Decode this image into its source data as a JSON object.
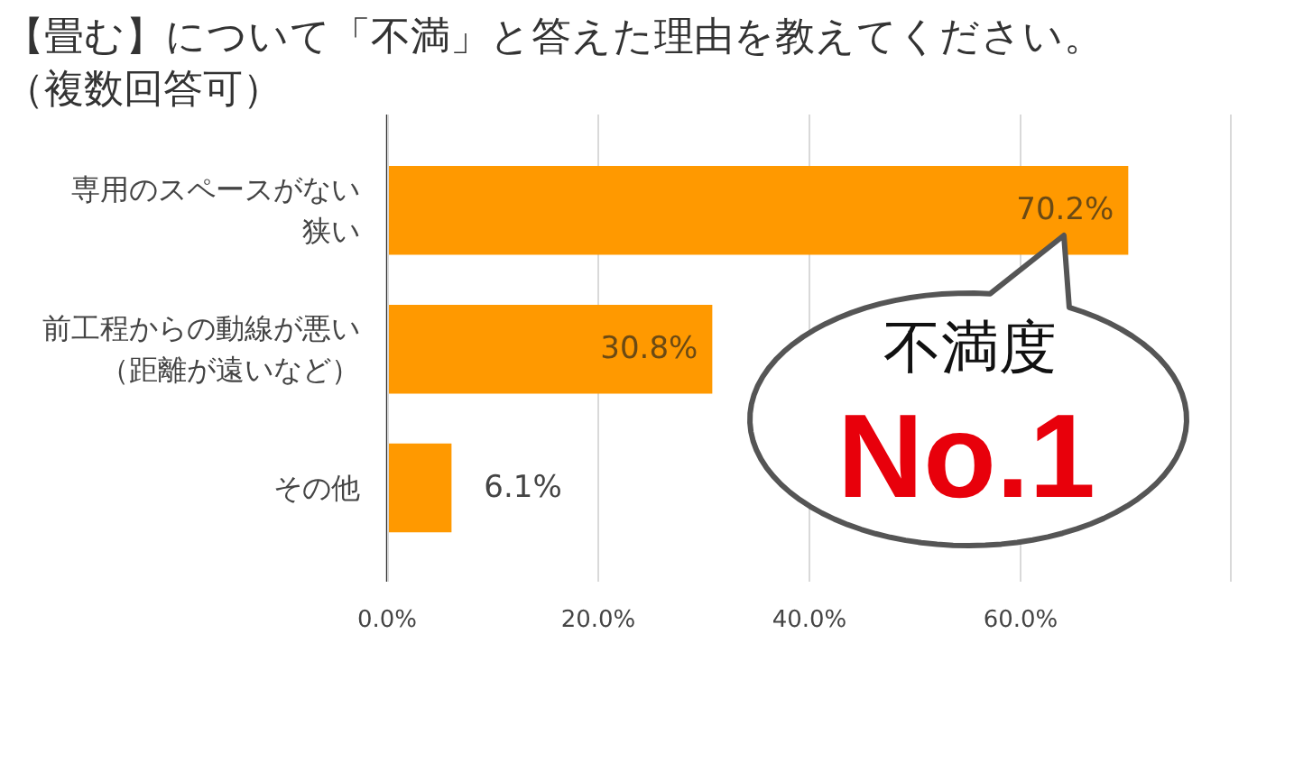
{
  "chart_data": {
    "type": "bar",
    "orientation": "horizontal",
    "title": "【畳む】について「不満」と答えた理由を教えてください。",
    "subtitle": "（複数回答可）",
    "categories": [
      "専用のスペースがない狭い",
      "前工程からの動線が悪い（距離が遠いなど）",
      "その他"
    ],
    "values": [
      70.2,
      30.8,
      6.1
    ],
    "color": "#ff9900",
    "value_labels": [
      "70.2%",
      "30.8%",
      "6.1%"
    ],
    "xlim": [
      0,
      80
    ],
    "xticks": [
      {
        "value": 0,
        "label": "0.0%"
      },
      {
        "value": 20,
        "label": "20.0%"
      },
      {
        "value": 40,
        "label": "40.0%"
      },
      {
        "value": 60,
        "label": "60.0%"
      },
      {
        "value": 80,
        "label": null
      }
    ],
    "grid": "x",
    "annotations": [
      "不満度",
      "No.1"
    ]
  }
}
